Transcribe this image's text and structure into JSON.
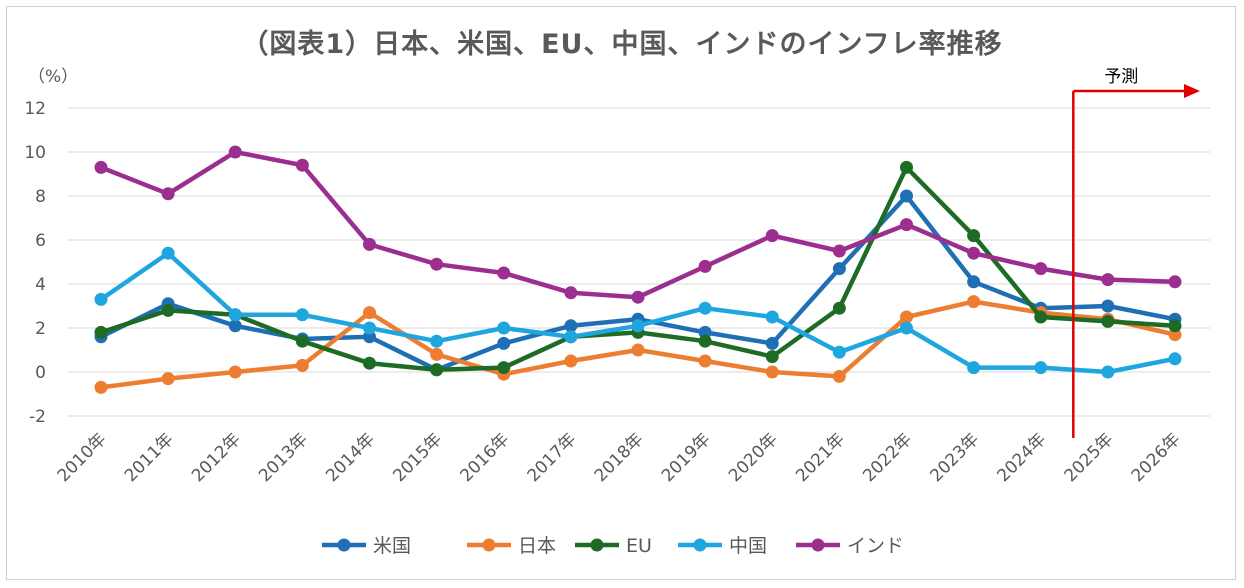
{
  "chart_data": {
    "type": "line",
    "title": "（図表1）日本、米国、EU、中国、インドのインフレ率推移",
    "unit_label": "（%）",
    "forecast_label": "予測",
    "forecast_start": "2025年",
    "categories": [
      "2010年",
      "2011年",
      "2012年",
      "2013年",
      "2014年",
      "2015年",
      "2016年",
      "2017年",
      "2018年",
      "2019年",
      "2020年",
      "2021年",
      "2022年",
      "2023年",
      "2024年",
      "2025年",
      "2026年"
    ],
    "ylim": [
      -2,
      12
    ],
    "yticks": [
      "-2",
      "0",
      "2",
      "4",
      "6",
      "8",
      "10",
      "12"
    ],
    "grid": true,
    "legend_position": "bottom",
    "series": [
      {
        "name": "米国",
        "color": "#1f6fb5",
        "values": [
          1.6,
          3.1,
          2.1,
          1.5,
          1.6,
          0.1,
          1.3,
          2.1,
          2.4,
          1.8,
          1.3,
          4.7,
          8.0,
          4.1,
          2.9,
          3.0,
          2.4
        ]
      },
      {
        "name": "日本",
        "color": "#ed7d31",
        "values": [
          -0.7,
          -0.3,
          0.0,
          0.3,
          2.7,
          0.8,
          -0.1,
          0.5,
          1.0,
          0.5,
          0.0,
          -0.2,
          2.5,
          3.2,
          2.7,
          2.4,
          1.7
        ]
      },
      {
        "name": "EU",
        "color": "#1e6b25",
        "values": [
          1.8,
          2.8,
          2.6,
          1.4,
          0.4,
          0.1,
          0.2,
          1.6,
          1.8,
          1.4,
          0.7,
          2.9,
          9.3,
          6.2,
          2.5,
          2.3,
          2.1
        ]
      },
      {
        "name": "中国",
        "color": "#1fa6df",
        "values": [
          3.3,
          5.4,
          2.6,
          2.6,
          2.0,
          1.4,
          2.0,
          1.6,
          2.1,
          2.9,
          2.5,
          0.9,
          2.0,
          0.2,
          0.2,
          0.0,
          0.6
        ]
      },
      {
        "name": "インド",
        "color": "#9b2e8f",
        "values": [
          9.3,
          8.1,
          10.0,
          9.4,
          5.8,
          4.9,
          4.5,
          3.6,
          3.4,
          4.8,
          6.2,
          5.5,
          6.7,
          5.4,
          4.7,
          4.2,
          4.1
        ]
      }
    ]
  }
}
